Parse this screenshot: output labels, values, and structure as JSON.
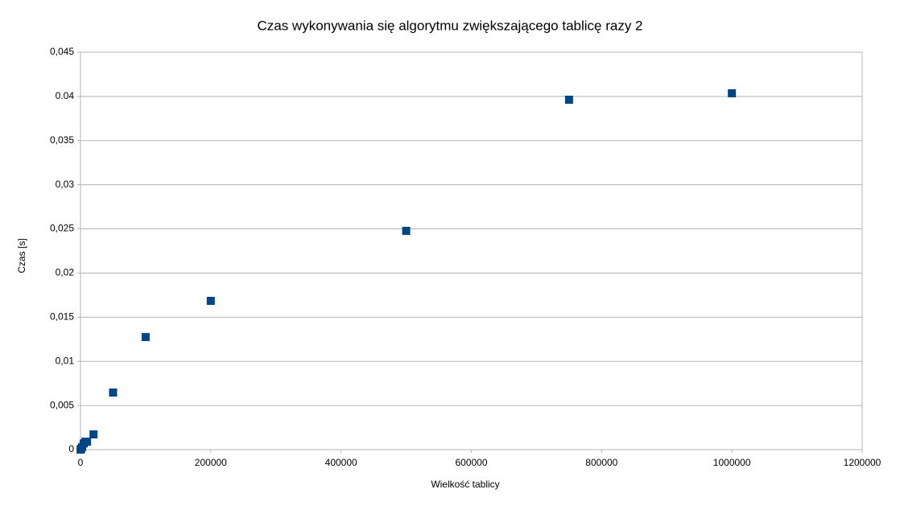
{
  "chart_data": {
    "type": "scatter",
    "title": "Czas wykonywania się algorytmu zwiększającego tablicę razy 2",
    "xlabel": "Wielkość tablicy",
    "ylabel": "Czas [s]",
    "series": [
      {
        "color": "#004586",
        "x": [
          100,
          1000,
          2500,
          5000,
          7500,
          10000,
          20000,
          50000,
          100000,
          200000,
          500000,
          750000,
          1000000
        ],
        "values": [
          1e-05,
          0.0001,
          0.0003,
          0.0007,
          0.0009,
          0.0009,
          0.00173,
          0.00647,
          0.01275,
          0.01685,
          0.02478,
          0.03963,
          0.04036
        ]
      }
    ],
    "xlim": [
      0,
      1200000
    ],
    "xticks": [
      0,
      200000,
      400000,
      600000,
      800000,
      1000000,
      1200000
    ],
    "ylim": [
      0,
      0.045
    ],
    "yticks": [
      0,
      {
        "value": 0.005,
        "label": "0,005"
      },
      {
        "value": 0.01,
        "label": "0,01"
      },
      {
        "value": 0.015,
        "label": "0,015"
      },
      {
        "value": 0.02,
        "label": "0,02"
      },
      {
        "value": 0.025,
        "label": "0,025"
      },
      {
        "value": 0.03,
        "label": "0,03"
      },
      {
        "value": 0.035,
        "label": "0,035"
      },
      {
        "value": 0.04,
        "label": "0.04"
      },
      {
        "value": 0.045,
        "label": "0,045"
      }
    ],
    "grid": true
  }
}
